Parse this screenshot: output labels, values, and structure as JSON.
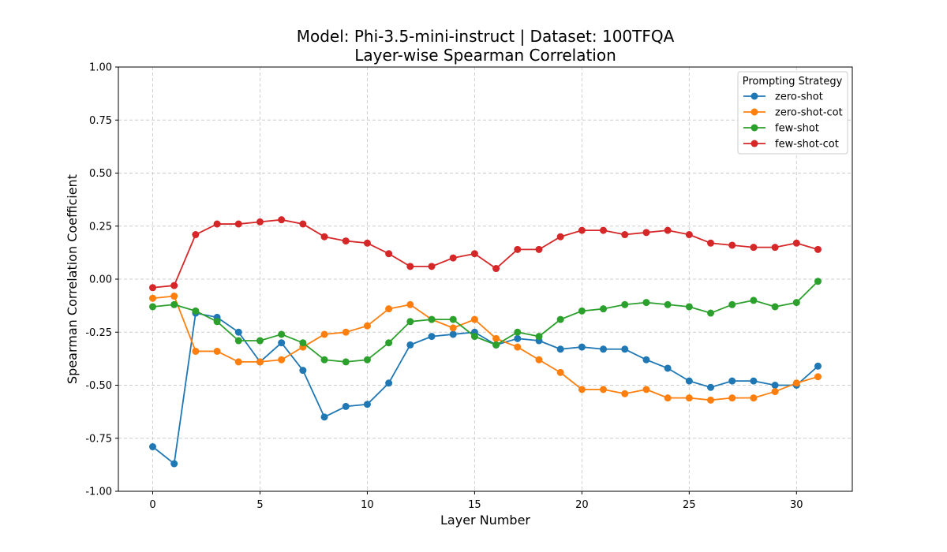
{
  "chart_data": {
    "type": "line",
    "title": "Model: Phi-3.5-mini-instruct | Dataset: 100TFQA",
    "subtitle": "Layer-wise Spearman Correlation",
    "xlabel": "Layer Number",
    "ylabel": "Spearman Correlation Coefficient",
    "xlim": [
      -1.6,
      32.6
    ],
    "ylim": [
      -1.0,
      1.0
    ],
    "xticks": [
      0,
      5,
      10,
      15,
      20,
      25,
      30
    ],
    "yticks": [
      -1.0,
      -0.75,
      -0.5,
      -0.25,
      0.0,
      0.25,
      0.5,
      0.75,
      1.0
    ],
    "ytick_labels": [
      "-1.00",
      "-0.75",
      "-0.50",
      "-0.25",
      "0.00",
      "0.25",
      "0.50",
      "0.75",
      "1.00"
    ],
    "grid": true,
    "legend": {
      "title": "Prompting Strategy",
      "placement": "top-right"
    },
    "x": [
      0,
      1,
      2,
      3,
      4,
      5,
      6,
      7,
      8,
      9,
      10,
      11,
      12,
      13,
      14,
      15,
      16,
      17,
      18,
      19,
      20,
      21,
      22,
      23,
      24,
      25,
      26,
      27,
      28,
      29,
      30,
      31
    ],
    "series": [
      {
        "name": "zero-shot",
        "color": "#1f77b4",
        "values": [
          -0.79,
          -0.87,
          -0.16,
          -0.18,
          -0.25,
          -0.39,
          -0.3,
          -0.43,
          -0.65,
          -0.6,
          -0.59,
          -0.49,
          -0.31,
          -0.27,
          -0.26,
          -0.25,
          -0.31,
          -0.28,
          -0.29,
          -0.33,
          -0.32,
          -0.33,
          -0.33,
          -0.38,
          -0.42,
          -0.48,
          -0.51,
          -0.48,
          -0.48,
          -0.5,
          -0.5,
          -0.41
        ]
      },
      {
        "name": "zero-shot-cot",
        "color": "#ff7f0e",
        "values": [
          -0.09,
          -0.08,
          -0.34,
          -0.34,
          -0.39,
          -0.39,
          -0.38,
          -0.32,
          -0.26,
          -0.25,
          -0.22,
          -0.14,
          -0.12,
          -0.19,
          -0.23,
          -0.19,
          -0.28,
          -0.32,
          -0.38,
          -0.44,
          -0.52,
          -0.52,
          -0.54,
          -0.52,
          -0.56,
          -0.56,
          -0.57,
          -0.56,
          -0.56,
          -0.53,
          -0.49,
          -0.46
        ]
      },
      {
        "name": "few-shot",
        "color": "#2ca02c",
        "values": [
          -0.13,
          -0.12,
          -0.15,
          -0.2,
          -0.29,
          -0.29,
          -0.26,
          -0.3,
          -0.38,
          -0.39,
          -0.38,
          -0.3,
          -0.2,
          -0.19,
          -0.19,
          -0.27,
          -0.31,
          -0.25,
          -0.27,
          -0.19,
          -0.15,
          -0.14,
          -0.12,
          -0.11,
          -0.12,
          -0.13,
          -0.16,
          -0.12,
          -0.1,
          -0.13,
          -0.11,
          -0.01
        ]
      },
      {
        "name": "few-shot-cot",
        "color": "#d62728",
        "values": [
          -0.04,
          -0.03,
          0.21,
          0.26,
          0.26,
          0.27,
          0.28,
          0.26,
          0.2,
          0.18,
          0.17,
          0.12,
          0.06,
          0.06,
          0.1,
          0.12,
          0.05,
          0.14,
          0.14,
          0.2,
          0.23,
          0.23,
          0.21,
          0.22,
          0.23,
          0.21,
          0.17,
          0.16,
          0.15,
          0.15,
          0.17,
          0.14
        ]
      }
    ]
  }
}
